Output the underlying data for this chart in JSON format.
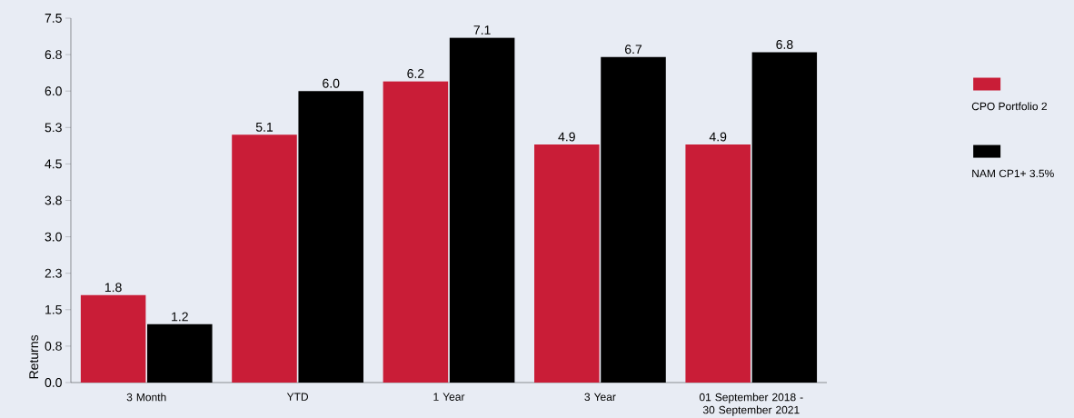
{
  "chart_data": {
    "type": "bar",
    "ylabel": "Returns",
    "categories": [
      "3 Month",
      "YTD",
      "1 Year",
      "3 Year",
      "01 September 2018 - 30 September 2021"
    ],
    "series": [
      {
        "name": "CPO Portfolio 2",
        "color": "#c91d37",
        "values": [
          1.8,
          5.1,
          6.2,
          4.9,
          4.9
        ],
        "value_labels": [
          "1.8",
          "5.1",
          "6.2",
          "4.9",
          "4.9"
        ]
      },
      {
        "name": "NAM CP1+ 3.5%",
        "color": "#000000",
        "values": [
          1.2,
          6.0,
          7.1,
          6.7,
          6.8
        ],
        "value_labels": [
          "1.2",
          "6.0",
          "7.1",
          "6.7",
          "6.8"
        ]
      }
    ],
    "ylim": [
      0,
      7.5
    ],
    "yticks": [
      {
        "value": 0,
        "label": "0.0"
      },
      {
        "value": 0.75,
        "label": "0.8"
      },
      {
        "value": 1.5,
        "label": "1.5"
      },
      {
        "value": 2.25,
        "label": "2.3"
      },
      {
        "value": 3,
        "label": "3.0"
      },
      {
        "value": 3.75,
        "label": "3.8"
      },
      {
        "value": 4.5,
        "label": "4.5"
      },
      {
        "value": 5.25,
        "label": "5.3"
      },
      {
        "value": 6,
        "label": "6.0"
      },
      {
        "value": 6.75,
        "label": "6.8"
      },
      {
        "value": 7.5,
        "label": "7.5"
      }
    ],
    "legend": "right"
  }
}
